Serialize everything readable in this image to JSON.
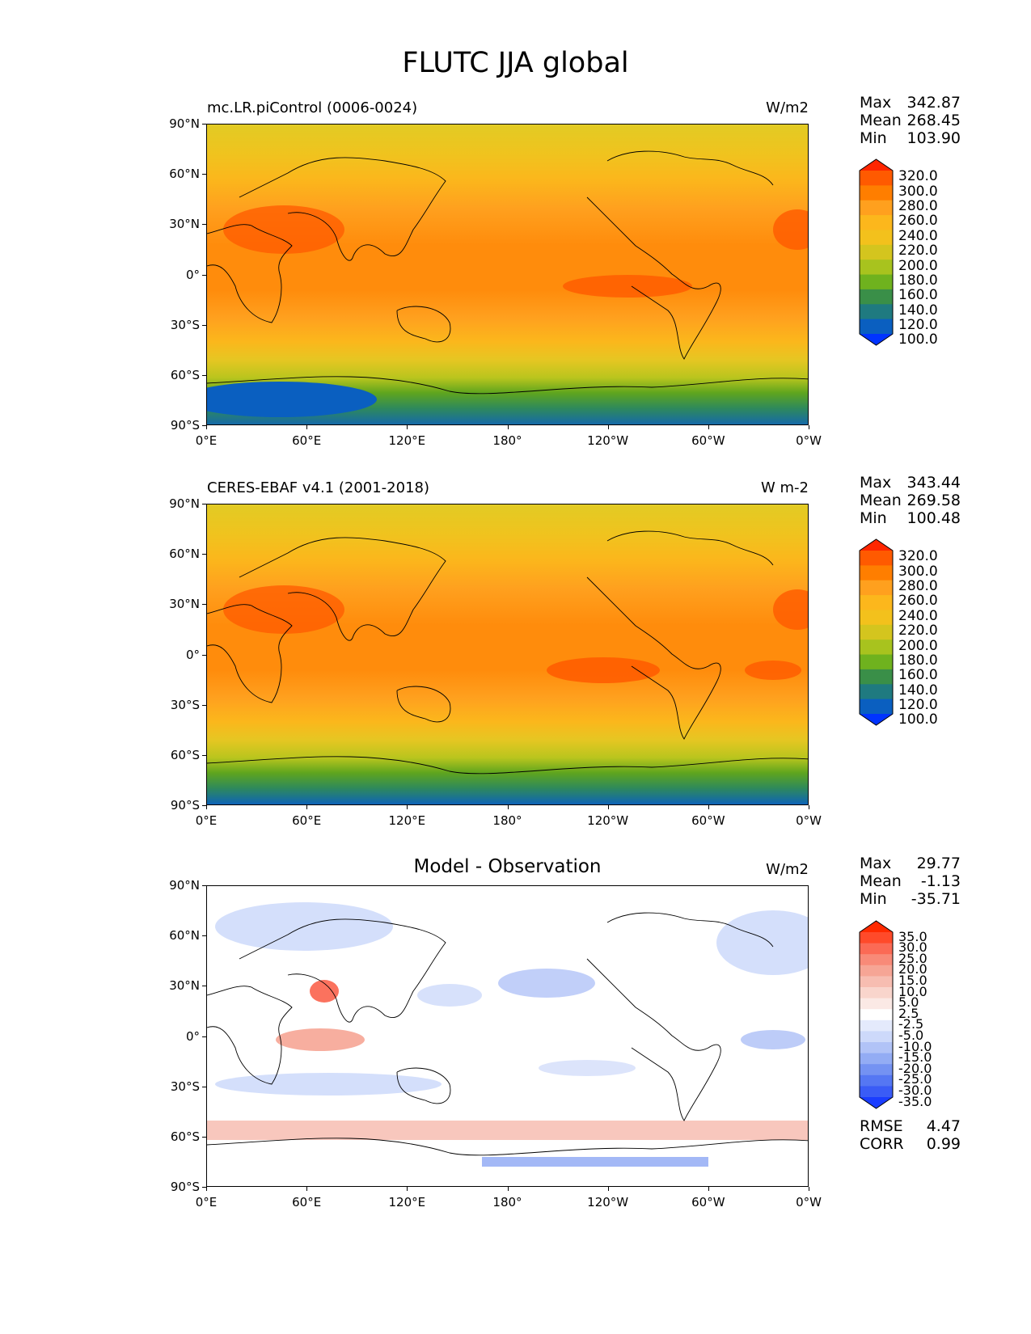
{
  "figure": {
    "title": "FLUTC JJA global"
  },
  "axes": {
    "lat_labels": [
      "90°N",
      "60°N",
      "30°N",
      "0°",
      "30°S",
      "60°S",
      "90°S"
    ],
    "lon_labels": [
      "0°E",
      "60°E",
      "120°E",
      "180°",
      "120°W",
      "60°W",
      "0°W"
    ]
  },
  "panels": [
    {
      "title_left": "mc.LR.piControl (0006-0024)",
      "title_center": "",
      "units": "W/m2",
      "stats": [
        {
          "label": "Max",
          "value": "342.87"
        },
        {
          "label": "Mean",
          "value": "268.45"
        },
        {
          "label": "Min",
          "value": "103.90"
        }
      ],
      "colorbar": {
        "ticks": [
          "320.0",
          "300.0",
          "280.0",
          "260.0",
          "240.0",
          "220.0",
          "200.0",
          "180.0",
          "160.0",
          "140.0",
          "120.0",
          "100.0"
        ],
        "colors": [
          "#ff2600",
          "#ff5a00",
          "#ff7e00",
          "#ffa01e",
          "#fcb71c",
          "#f3c11c",
          "#d4c51e",
          "#a8c31e",
          "#6fb21e",
          "#3a8f48",
          "#1f7a80",
          "#0a5fc0",
          "#0033ff"
        ]
      }
    },
    {
      "title_left": "CERES-EBAF v4.1 (2001-2018)",
      "title_center": "",
      "units": "W m-2",
      "stats": [
        {
          "label": "Max",
          "value": "343.44"
        },
        {
          "label": "Mean",
          "value": "269.58"
        },
        {
          "label": "Min",
          "value": "100.48"
        }
      ],
      "colorbar": {
        "ticks": [
          "320.0",
          "300.0",
          "280.0",
          "260.0",
          "240.0",
          "220.0",
          "200.0",
          "180.0",
          "160.0",
          "140.0",
          "120.0",
          "100.0"
        ],
        "colors": [
          "#ff2600",
          "#ff5a00",
          "#ff7e00",
          "#ffa01e",
          "#fcb71c",
          "#f3c11c",
          "#d4c51e",
          "#a8c31e",
          "#6fb21e",
          "#3a8f48",
          "#1f7a80",
          "#0a5fc0",
          "#0033ff"
        ]
      }
    },
    {
      "title_left": "",
      "title_center": "Model - Observation",
      "units": "W/m2",
      "stats": [
        {
          "label": "Max",
          "value": "29.77"
        },
        {
          "label": "Mean",
          "value": "-1.13"
        },
        {
          "label": "Min",
          "value": "-35.71"
        }
      ],
      "colorbar": {
        "ticks": [
          "35.0",
          "30.0",
          "25.0",
          "20.0",
          "15.0",
          "10.0",
          "5.0",
          "2.5",
          "-2.5",
          "-5.0",
          "-10.0",
          "-15.0",
          "-20.0",
          "-25.0",
          "-30.0",
          "-35.0"
        ],
        "colors": [
          "#ff2a00",
          "#ff4a2a",
          "#fb6a55",
          "#f88a78",
          "#f6a595",
          "#f7bdb1",
          "#f9d5cc",
          "#fbe9e5",
          "#ffffff",
          "#e4eafc",
          "#cdd9fa",
          "#b1c3f7",
          "#93acf4",
          "#7492f2",
          "#5577f3",
          "#3a5cf6",
          "#1a3dff"
        ]
      },
      "summary": [
        {
          "label": "RMSE",
          "value": "4.47"
        },
        {
          "label": "CORR",
          "value": "0.99"
        }
      ]
    }
  ],
  "chart_data": [
    {
      "type": "heatmap",
      "title": "mc.LR.piControl (0006-0024)",
      "units": "W/m2",
      "xlim": [
        0,
        360
      ],
      "ylim": [
        -90,
        90
      ],
      "color_levels": [
        100,
        120,
        140,
        160,
        180,
        200,
        220,
        240,
        260,
        280,
        300,
        320
      ],
      "field_summary": {
        "max": 342.87,
        "mean": 268.45,
        "min": 103.9
      }
    },
    {
      "type": "heatmap",
      "title": "CERES-EBAF v4.1 (2001-2018)",
      "units": "W m-2",
      "xlim": [
        0,
        360
      ],
      "ylim": [
        -90,
        90
      ],
      "color_levels": [
        100,
        120,
        140,
        160,
        180,
        200,
        220,
        240,
        260,
        280,
        300,
        320
      ],
      "field_summary": {
        "max": 343.44,
        "mean": 269.58,
        "min": 100.48
      }
    },
    {
      "type": "heatmap",
      "title": "Model - Observation",
      "units": "W/m2",
      "xlim": [
        0,
        360
      ],
      "ylim": [
        -90,
        90
      ],
      "color_levels": [
        -35,
        -30,
        -25,
        -20,
        -15,
        -10,
        -5,
        -2.5,
        2.5,
        5,
        10,
        15,
        20,
        25,
        30,
        35
      ],
      "field_summary": {
        "max": 29.77,
        "mean": -1.13,
        "min": -35.71,
        "rmse": 4.47,
        "corr": 0.99
      }
    }
  ]
}
